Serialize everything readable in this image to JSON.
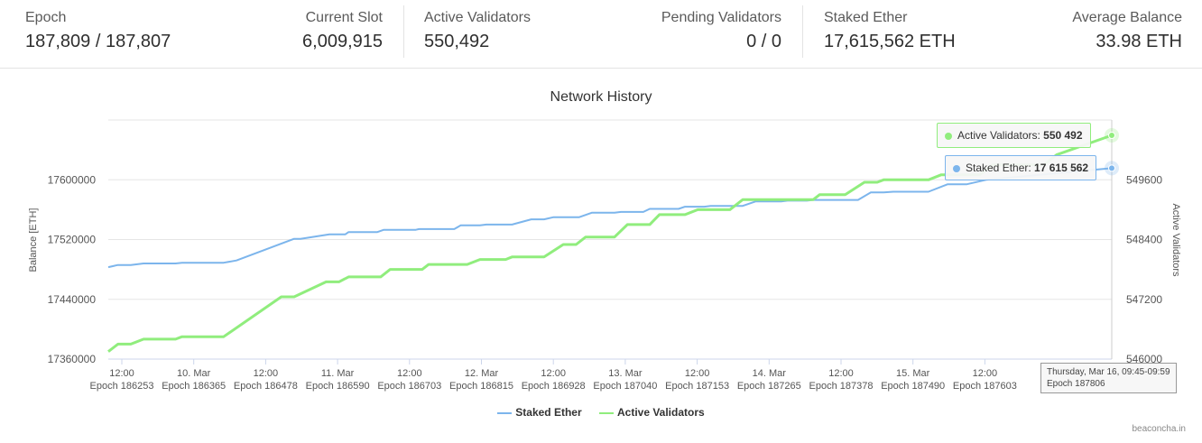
{
  "stats": {
    "epoch": {
      "label": "Epoch",
      "value": "187,809 / 187,807"
    },
    "slot": {
      "label": "Current Slot",
      "value": "6,009,915"
    },
    "active": {
      "label": "Active Validators",
      "value": "550,492"
    },
    "pending": {
      "label": "Pending Validators",
      "value": "0 / 0"
    },
    "staked": {
      "label": "Staked Ether",
      "value": "17,615,562 ETH"
    },
    "avg": {
      "label": "Average Balance",
      "value": "33.98 ETH"
    }
  },
  "chart": {
    "title": "Network History",
    "credits": "beaconcha.in",
    "tooltip_active": {
      "label": "Active Validators: ",
      "value": "550 492"
    },
    "tooltip_staked": {
      "label": "Staked Ether: ",
      "value": "17 615 562"
    },
    "x_tooltip": {
      "line1": "Thursday, Mar 16, 09:45-09:59",
      "line2": "Epoch 187806"
    },
    "colors": {
      "staked": "#7cb5ec",
      "active": "#90ed7d"
    }
  },
  "chart_data": {
    "type": "line",
    "title": "Network History",
    "ylabel_left": "Balance [ETH]",
    "ylabel_right": "Active Validators",
    "y_left_ticks": [
      "17360000",
      "17440000",
      "17520000",
      "17600000"
    ],
    "y_right_ticks": [
      "546000",
      "547200",
      "548400",
      "549600"
    ],
    "y_left_range": [
      17360000,
      17680000
    ],
    "y_right_range": [
      546000,
      550800
    ],
    "x_ticks": [
      {
        "top": "12:00",
        "bottom": "Epoch 186253"
      },
      {
        "top": "10. Mar",
        "bottom": "Epoch 186365"
      },
      {
        "top": "12:00",
        "bottom": "Epoch 186478"
      },
      {
        "top": "11. Mar",
        "bottom": "Epoch 186590"
      },
      {
        "top": "12:00",
        "bottom": "Epoch 186703"
      },
      {
        "top": "12. Mar",
        "bottom": "Epoch 186815"
      },
      {
        "top": "12:00",
        "bottom": "Epoch 186928"
      },
      {
        "top": "13. Mar",
        "bottom": "Epoch 187040"
      },
      {
        "top": "12:00",
        "bottom": "Epoch 187153"
      },
      {
        "top": "14. Mar",
        "bottom": "Epoch 187265"
      },
      {
        "top": "12:00",
        "bottom": "Epoch 187378"
      },
      {
        "top": "15. Mar",
        "bottom": "Epoch 187490"
      },
      {
        "top": "12:00",
        "bottom": "Epoch 187603"
      },
      {
        "top": "",
        "bottom": ""
      }
    ],
    "x_range": [
      186240,
      187806
    ],
    "series": [
      {
        "name": "Staked Ether",
        "axis": "left",
        "points": [
          [
            186240,
            17483000
          ],
          [
            186255,
            17486000
          ],
          [
            186275,
            17486000
          ],
          [
            186295,
            17488000
          ],
          [
            186345,
            17488000
          ],
          [
            186355,
            17489000
          ],
          [
            186420,
            17489000
          ],
          [
            186440,
            17492000
          ],
          [
            186530,
            17521000
          ],
          [
            186540,
            17521000
          ],
          [
            186585,
            17527000
          ],
          [
            186610,
            17527000
          ],
          [
            186615,
            17530000
          ],
          [
            186660,
            17530000
          ],
          [
            186670,
            17533000
          ],
          [
            186720,
            17533000
          ],
          [
            186725,
            17534000
          ],
          [
            186780,
            17534000
          ],
          [
            186790,
            17539000
          ],
          [
            186820,
            17539000
          ],
          [
            186830,
            17540000
          ],
          [
            186870,
            17540000
          ],
          [
            186900,
            17547000
          ],
          [
            186920,
            17547000
          ],
          [
            186935,
            17550000
          ],
          [
            186975,
            17550000
          ],
          [
            186995,
            17556000
          ],
          [
            187030,
            17556000
          ],
          [
            187040,
            17557000
          ],
          [
            187075,
            17557000
          ],
          [
            187085,
            17561000
          ],
          [
            187130,
            17561000
          ],
          [
            187140,
            17564000
          ],
          [
            187170,
            17564000
          ],
          [
            187180,
            17565000
          ],
          [
            187230,
            17565000
          ],
          [
            187250,
            17571000
          ],
          [
            187290,
            17571000
          ],
          [
            187300,
            17572000
          ],
          [
            187330,
            17572000
          ],
          [
            187340,
            17573000
          ],
          [
            187410,
            17573000
          ],
          [
            187430,
            17583000
          ],
          [
            187450,
            17583000
          ],
          [
            187465,
            17584000
          ],
          [
            187520,
            17584000
          ],
          [
            187550,
            17594000
          ],
          [
            187580,
            17594000
          ],
          [
            187610,
            17600000
          ],
          [
            187806,
            17615562
          ]
        ]
      },
      {
        "name": "Active Validators",
        "axis": "right",
        "points": [
          [
            186240,
            546150
          ],
          [
            186255,
            546300
          ],
          [
            186275,
            546300
          ],
          [
            186295,
            546400
          ],
          [
            186345,
            546400
          ],
          [
            186355,
            546450
          ],
          [
            186420,
            546450
          ],
          [
            186510,
            547250
          ],
          [
            186530,
            547250
          ],
          [
            186580,
            547550
          ],
          [
            186600,
            547550
          ],
          [
            186615,
            547650
          ],
          [
            186665,
            547650
          ],
          [
            186680,
            547800
          ],
          [
            186730,
            547800
          ],
          [
            186740,
            547900
          ],
          [
            186800,
            547900
          ],
          [
            186820,
            548000
          ],
          [
            186860,
            548000
          ],
          [
            186870,
            548050
          ],
          [
            186920,
            548050
          ],
          [
            186950,
            548300
          ],
          [
            186970,
            548300
          ],
          [
            186985,
            548450
          ],
          [
            187030,
            548450
          ],
          [
            187050,
            548700
          ],
          [
            187085,
            548700
          ],
          [
            187100,
            548900
          ],
          [
            187140,
            548900
          ],
          [
            187160,
            549000
          ],
          [
            187210,
            549000
          ],
          [
            187230,
            549200
          ],
          [
            187260,
            549200
          ],
          [
            187280,
            549200
          ],
          [
            187340,
            549200
          ],
          [
            187350,
            549300
          ],
          [
            187390,
            549300
          ],
          [
            187420,
            549550
          ],
          [
            187440,
            549550
          ],
          [
            187450,
            549600
          ],
          [
            187520,
            549600
          ],
          [
            187540,
            549700
          ],
          [
            187600,
            549700
          ],
          [
            187620,
            549900
          ],
          [
            187700,
            549900
          ],
          [
            187720,
            550100
          ],
          [
            187806,
            550492
          ]
        ]
      }
    ],
    "legend": [
      "Staked Ether",
      "Active Validators"
    ],
    "legend_position": "bottom-center",
    "grid": true
  }
}
